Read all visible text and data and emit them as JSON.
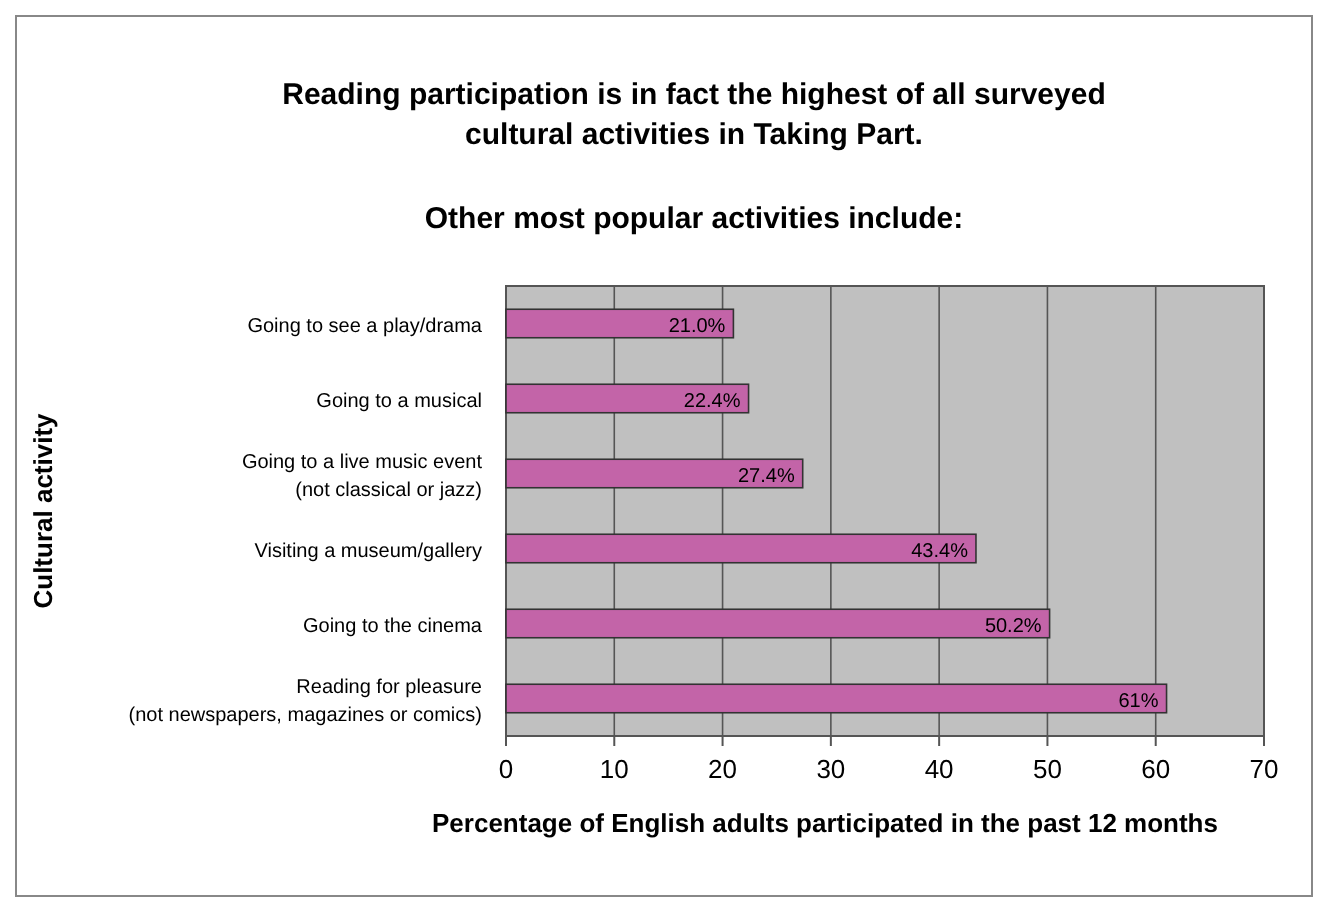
{
  "chart_data": {
    "type": "bar",
    "orientation": "horizontal",
    "title": "Reading participation is in fact the highest of all surveyed\ncultural activities in Taking Part.",
    "subtitle": "Other most popular activities include:",
    "xlabel": "Percentage of English adults participated in the past 12 months",
    "ylabel": "Cultural activity",
    "categories": [
      "Going to see a play/drama",
      "Going to a musical",
      "Going to a live music event\n(not classical or jazz)",
      "Visiting a museum/gallery",
      "Going to the cinema",
      "Reading for pleasure\n(not newspapers, magazines or comics)"
    ],
    "values": [
      21.0,
      22.4,
      27.4,
      43.4,
      50.2,
      61
    ],
    "value_labels": [
      "21.0%",
      "22.4%",
      "27.4%",
      "43.4%",
      "50.2%",
      "61%"
    ],
    "color": "#c364a8",
    "xlim": [
      0,
      70
    ],
    "xticks": [
      0,
      10,
      20,
      30,
      40,
      50,
      60,
      70
    ],
    "grid": "x"
  }
}
